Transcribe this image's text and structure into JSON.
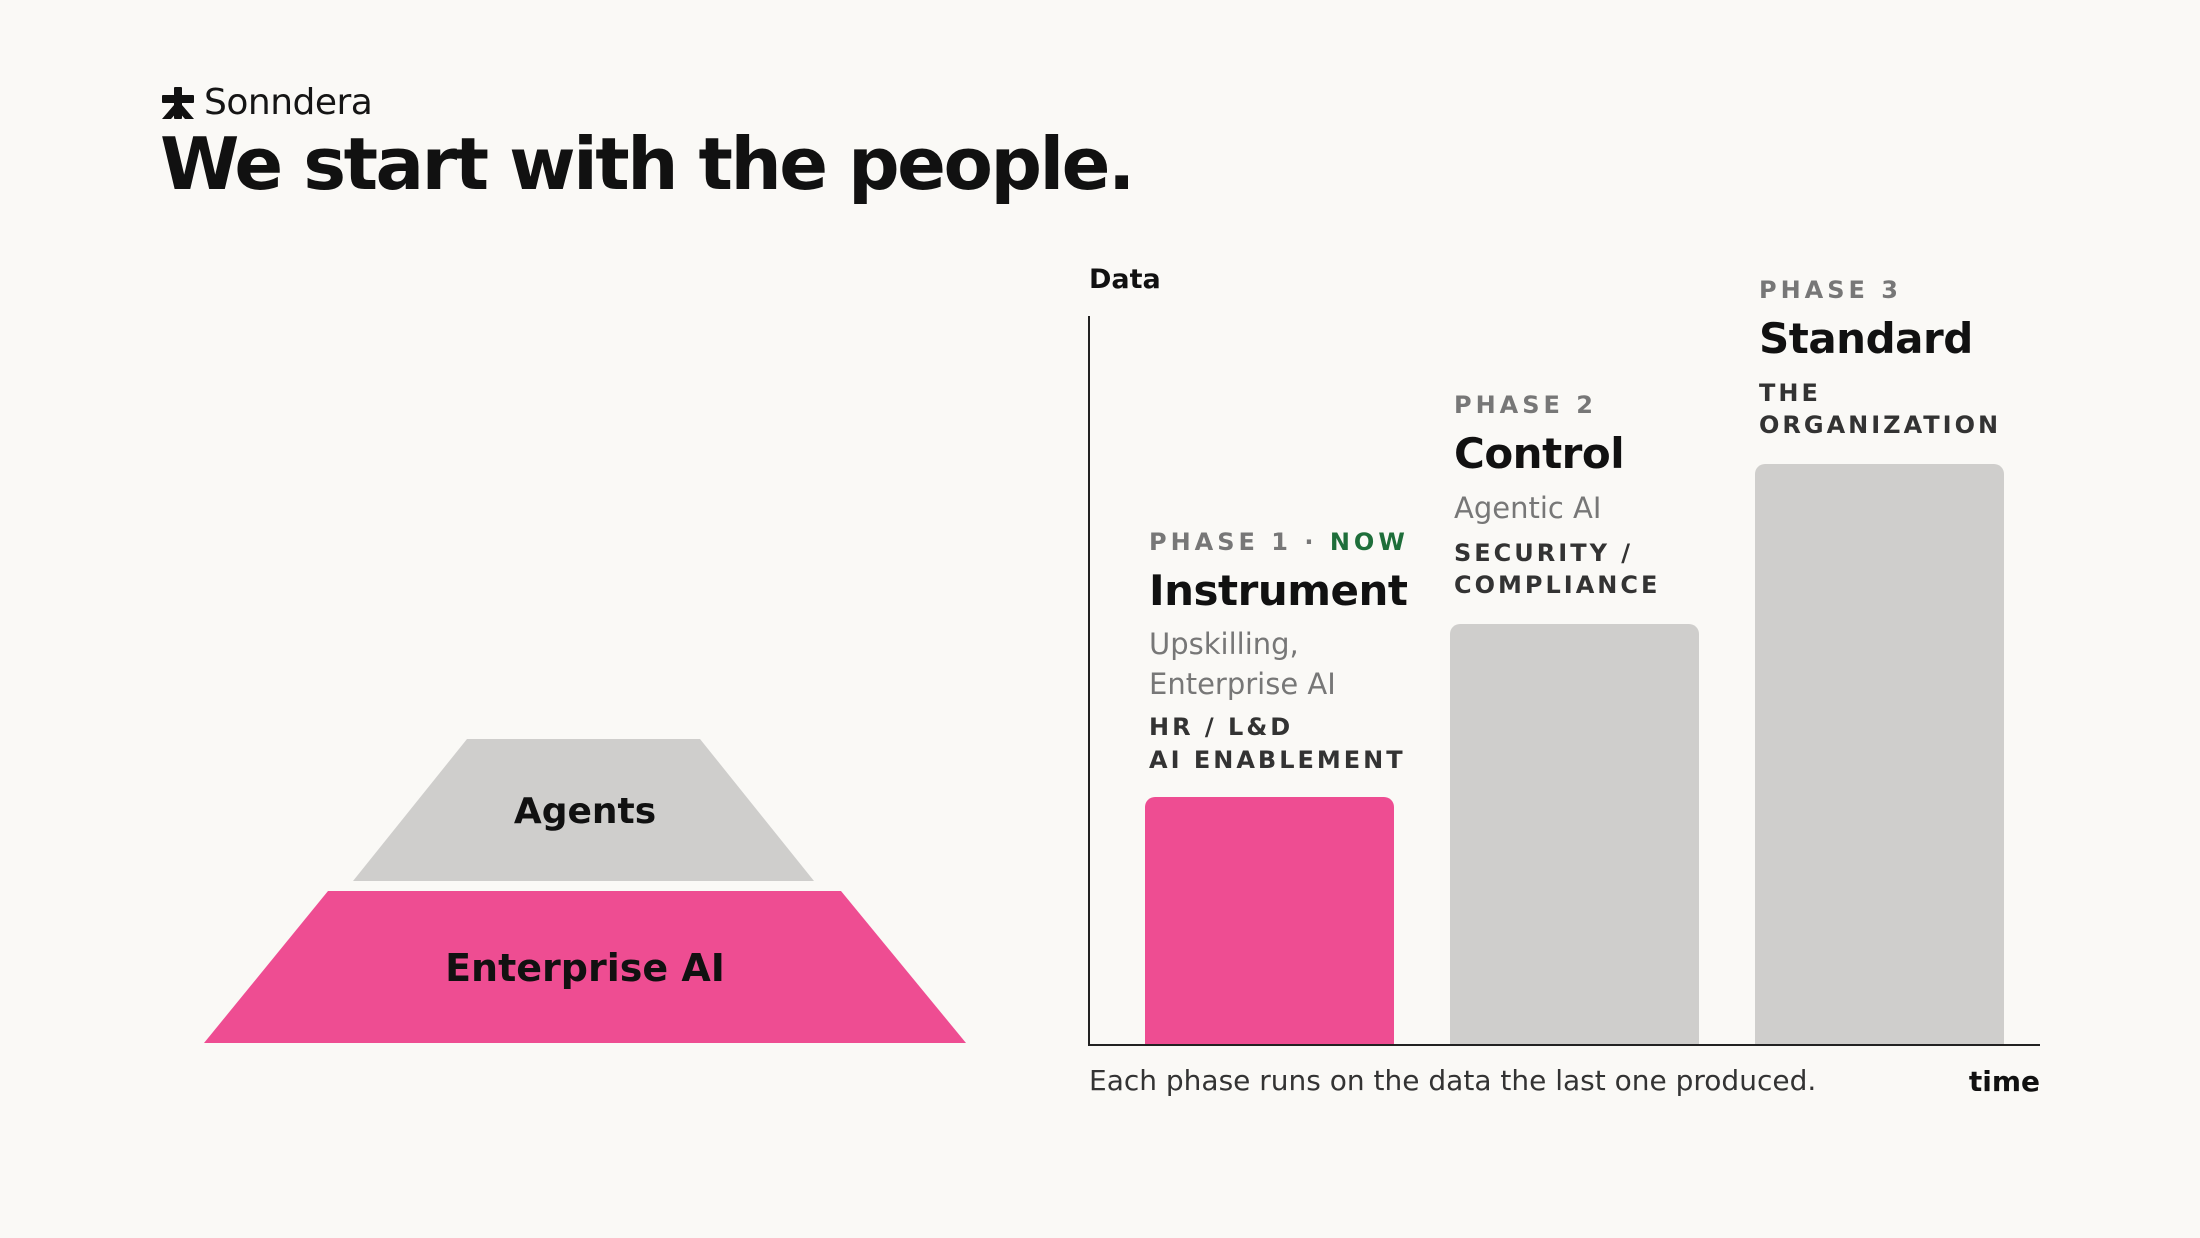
{
  "brand": {
    "icon": "asterisk-figure-icon",
    "name": "Sonndera"
  },
  "slide": {
    "title": "We start with the people."
  },
  "pyramid": {
    "top_label": "Agents",
    "bottom_label": "Enterprise AI",
    "top_color": "#cfcecc",
    "bottom_color": "#ee4d92"
  },
  "chart": {
    "y_label": "Data",
    "x_label": "time",
    "caption": "Each phase runs on the data the last one produced."
  },
  "chart_data": {
    "type": "bar",
    "categories": [
      "Instrument",
      "Control",
      "Standard"
    ],
    "values": [
      1,
      1.7,
      2.35
    ],
    "xlabel": "time",
    "ylabel": "Data",
    "colors": [
      "#ee4d92",
      "#cfcecc",
      "#cfcecc"
    ]
  },
  "phases": [
    {
      "tag": "PHASE 1 ·",
      "now": "NOW",
      "name": "Instrument",
      "sub": [
        "Upskilling,",
        "Enterprise AI"
      ],
      "org": [
        "HR / L&D",
        "AI ENABLEMENT"
      ]
    },
    {
      "tag": "PHASE 2",
      "name": "Control",
      "sub": [
        "Agentic AI"
      ],
      "org": [
        "SECURITY /",
        "COMPLIANCE"
      ]
    },
    {
      "tag": "PHASE 3",
      "name": "Standard",
      "org": [
        "THE",
        "ORGANIZATION"
      ]
    }
  ],
  "colors": {
    "accent": "#ee4d92",
    "neutral": "#cfcecc",
    "now": "#1e6e3a",
    "background": "#faf9f6"
  }
}
